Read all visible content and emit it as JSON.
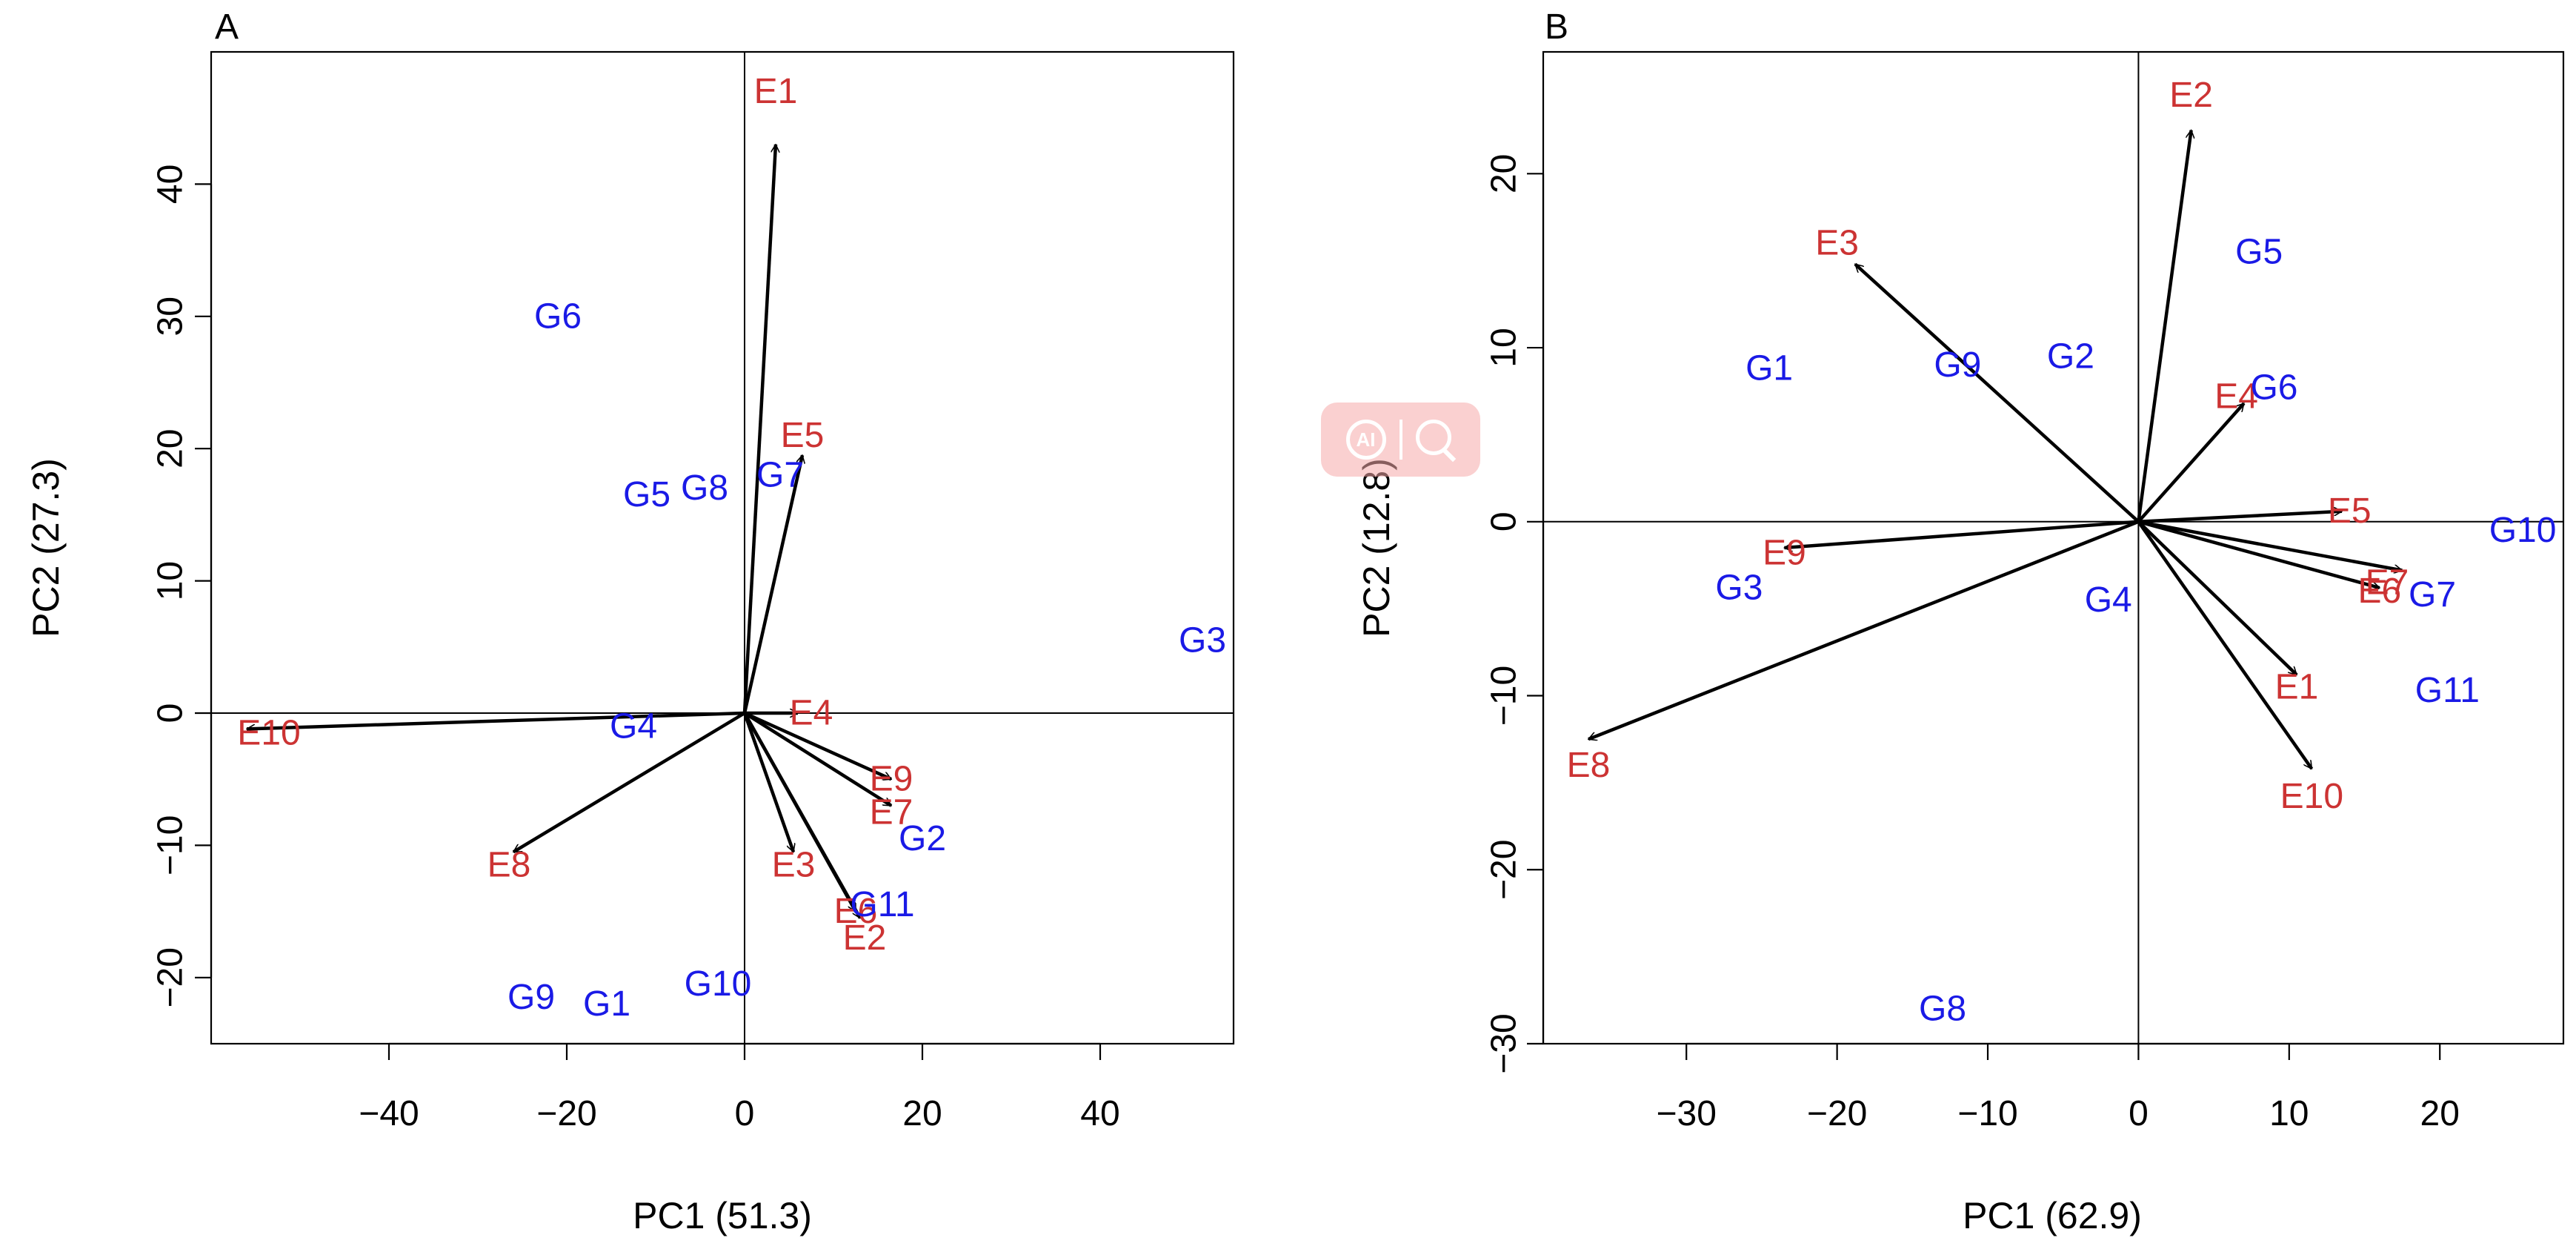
{
  "chart_data": [
    {
      "type": "scatter",
      "title": "A",
      "xlabel": "PC1 (51.3)",
      "ylabel": "PC2 (27.3)",
      "xlim": [
        -60,
        55
      ],
      "ylim": [
        -25,
        50
      ],
      "xticks": [
        -40,
        -20,
        0,
        20,
        40
      ],
      "yticks": [
        -20,
        -10,
        0,
        10,
        20,
        30,
        40
      ],
      "colors": {
        "environment": "#CC3333",
        "genotype": "#1A1AE6"
      },
      "environment_vectors": [
        {
          "name": "E1",
          "x": 3.5,
          "y": 43,
          "lx": 3.5,
          "ly": 47
        },
        {
          "name": "E2",
          "x": 13,
          "y": -15.5,
          "lx": 13.5,
          "ly": -17
        },
        {
          "name": "E3",
          "x": 5.5,
          "y": -10.5,
          "lx": 5.5,
          "ly": -11.5
        },
        {
          "name": "E4",
          "x": 6,
          "y": 0,
          "lx": 7.5,
          "ly": 0
        },
        {
          "name": "E5",
          "x": 6.5,
          "y": 19.5,
          "lx": 6.5,
          "ly": 21
        },
        {
          "name": "E6",
          "x": 12.5,
          "y": -15,
          "lx": 12.5,
          "ly": -15
        },
        {
          "name": "E7",
          "x": 16.5,
          "y": -7,
          "lx": 16.5,
          "ly": -7.5
        },
        {
          "name": "E8",
          "x": -26,
          "y": -10.5,
          "lx": -26.5,
          "ly": -11.5
        },
        {
          "name": "E9",
          "x": 16.5,
          "y": -5,
          "lx": 16.5,
          "ly": -5
        },
        {
          "name": "E10",
          "x": -56,
          "y": -1.2,
          "lx": -53.5,
          "ly": -1.5
        }
      ],
      "genotypes": [
        {
          "name": "G1",
          "x": -15.5,
          "y": -22
        },
        {
          "name": "G2",
          "x": 20,
          "y": -9.5
        },
        {
          "name": "G3",
          "x": 51.5,
          "y": 5.5
        },
        {
          "name": "G4",
          "x": -12.5,
          "y": -1
        },
        {
          "name": "G5",
          "x": -11,
          "y": 16.5
        },
        {
          "name": "G6",
          "x": -21,
          "y": 30
        },
        {
          "name": "G7",
          "x": 4,
          "y": 18
        },
        {
          "name": "G8",
          "x": -4.5,
          "y": 17
        },
        {
          "name": "G9",
          "x": -24,
          "y": -21.5
        },
        {
          "name": "G10",
          "x": -3,
          "y": -20.5
        },
        {
          "name": "G11",
          "x": 15.5,
          "y": -14.5
        }
      ]
    },
    {
      "type": "scatter",
      "title": "B",
      "xlabel": "PC1 (62.9)",
      "ylabel": "PC2 (12.8)",
      "xlim": [
        -39.5,
        28.2
      ],
      "ylim": [
        -30,
        27
      ],
      "xticks": [
        -30,
        -20,
        -10,
        0,
        10,
        20
      ],
      "yticks": [
        -30,
        -20,
        -10,
        0,
        10,
        20
      ],
      "colors": {
        "environment": "#CC3333",
        "genotype": "#1A1AE6"
      },
      "environment_vectors": [
        {
          "name": "E1",
          "x": 10.5,
          "y": -8.8,
          "lx": 10.5,
          "ly": -9.5
        },
        {
          "name": "E2",
          "x": 3.5,
          "y": 22.5,
          "lx": 3.5,
          "ly": 24.5
        },
        {
          "name": "E3",
          "x": -18.8,
          "y": 14.8,
          "lx": -20,
          "ly": 16
        },
        {
          "name": "E4",
          "x": 7,
          "y": 6.8,
          "lx": 6.5,
          "ly": 7.2
        },
        {
          "name": "E5",
          "x": 13.5,
          "y": 0.6,
          "lx": 14,
          "ly": 0.6
        },
        {
          "name": "E6",
          "x": 16,
          "y": -3.8,
          "lx": 16,
          "ly": -4
        },
        {
          "name": "E7",
          "x": 17.5,
          "y": -2.8,
          "lx": 16.5,
          "ly": -3.5
        },
        {
          "name": "E8",
          "x": -36.5,
          "y": -12.5,
          "lx": -36.5,
          "ly": -14
        },
        {
          "name": "E9",
          "x": -23.5,
          "y": -1.5,
          "lx": -23.5,
          "ly": -1.8
        },
        {
          "name": "E10",
          "x": 11.5,
          "y": -14.2,
          "lx": 11.5,
          "ly": -15.8
        }
      ],
      "genotypes": [
        {
          "name": "G1",
          "x": -24.5,
          "y": 8.8
        },
        {
          "name": "G2",
          "x": -4.5,
          "y": 9.5
        },
        {
          "name": "G3",
          "x": -26.5,
          "y": -3.8
        },
        {
          "name": "G4",
          "x": -2,
          "y": -4.5
        },
        {
          "name": "G5",
          "x": 8,
          "y": 15.5
        },
        {
          "name": "G6",
          "x": 9,
          "y": 7.7
        },
        {
          "name": "G7",
          "x": 19.5,
          "y": -4.2
        },
        {
          "name": "G8",
          "x": -13,
          "y": -28
        },
        {
          "name": "G9",
          "x": -12,
          "y": 9
        },
        {
          "name": "G10",
          "x": 25.5,
          "y": -0.5
        },
        {
          "name": "G11",
          "x": 20.5,
          "y": -9.7
        }
      ]
    }
  ]
}
